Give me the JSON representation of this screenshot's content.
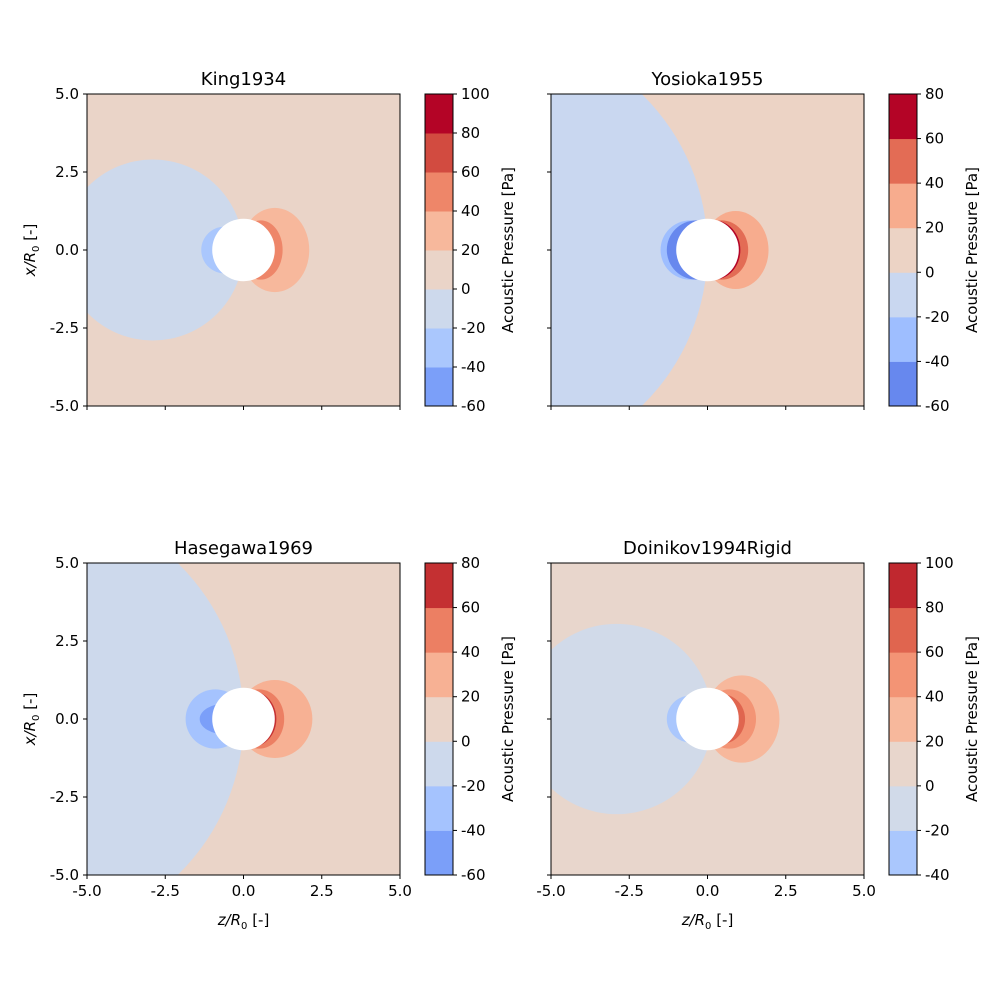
{
  "chart_data": [
    {
      "type": "heatmap",
      "title": "King1934",
      "xlabel": "",
      "ylabel": "x/R0 [-]",
      "xlim": [
        -5,
        5
      ],
      "ylim": [
        -5,
        5
      ],
      "xticks": [
        "",
        "",
        "",
        "",
        ""
      ],
      "yticks": [
        "5.0",
        "2.5",
        "0.0",
        "-2.5",
        "-5.0"
      ],
      "colorbar": {
        "label": "Acoustic Pressure [Pa]",
        "levels": [
          -60,
          -40,
          -20,
          0,
          20,
          40,
          60,
          80,
          100
        ],
        "colors": [
          "#7b9ff9",
          "#aac7fd",
          "#cdd9ec",
          "#ead4c8",
          "#f7b89c",
          "#ee8669",
          "#d24b40",
          "#b40426"
        ],
        "ticklabels": [
          "-60",
          "-40",
          "-20",
          "0",
          "20",
          "40",
          "60",
          "80",
          "100"
        ]
      },
      "regions": [
        {
          "shape": "circle",
          "cz": -2.9,
          "cx": 0.0,
          "r": 2.9,
          "level": "-20 to 0"
        },
        {
          "shape": "ellipse",
          "cz": 1.0,
          "cx": 0.0,
          "rz": 1.1,
          "rx": 1.35,
          "level": "20 to 40"
        },
        {
          "shape": "circle",
          "cz": -0.6,
          "cx": 0.0,
          "r": 0.75,
          "level": "-40 to -20"
        },
        {
          "shape": "ellipse",
          "cz": 0.55,
          "cx": 0.0,
          "rz": 0.7,
          "rx": 0.95,
          "level": "40 to 60"
        },
        {
          "shape": "ellipse",
          "cz": 0.3,
          "cx": 0.0,
          "rz": 0.65,
          "rx": 0.75,
          "level": "60 to 80"
        }
      ],
      "background_level": "0 to 20",
      "hole_radius": 1.0
    },
    {
      "type": "heatmap",
      "title": "Yosioka1955",
      "xlabel": "",
      "ylabel": "",
      "xlim": [
        -5,
        5
      ],
      "ylim": [
        -5,
        5
      ],
      "xticks": [
        "",
        "",
        "",
        "",
        ""
      ],
      "yticks": [
        "",
        "",
        "",
        "",
        ""
      ],
      "colorbar": {
        "label": "Acoustic Pressure [Pa]",
        "levels": [
          -60,
          -40,
          -20,
          0,
          20,
          40,
          60,
          80
        ],
        "colors": [
          "#6788ee",
          "#9ebeff",
          "#c9d7f0",
          "#ecd3c5",
          "#f7ac8e",
          "#e36c55",
          "#b40426"
        ],
        "ticklabels": [
          "-60",
          "-40",
          "-20",
          "0",
          "20",
          "40",
          "60",
          "80"
        ]
      },
      "regions": [
        {
          "shape": "circle",
          "cz": -7.0,
          "cx": 0.0,
          "r": 7.0,
          "level": "-20 to 0"
        },
        {
          "shape": "ellipse",
          "cz": 0.9,
          "cx": 0.0,
          "rz": 1.05,
          "rx": 1.25,
          "level": "20 to 40"
        },
        {
          "shape": "circle",
          "cz": -0.55,
          "cx": 0.0,
          "r": 0.95,
          "level": "-40 to -20"
        },
        {
          "shape": "circle",
          "cz": -0.35,
          "cx": 0.0,
          "r": 0.95,
          "level": "-60 to -40"
        },
        {
          "shape": "ellipse",
          "cz": 0.45,
          "cx": 0.0,
          "rz": 0.85,
          "rx": 0.95,
          "level": "40 to 60"
        },
        {
          "shape": "ellipse",
          "cz": 0.2,
          "cx": 0.0,
          "rz": 0.85,
          "rx": 0.95,
          "level": "60 to 80"
        }
      ],
      "background_level": "0 to 20",
      "hole_radius": 1.0
    },
    {
      "type": "heatmap",
      "title": "Hasegawa1969",
      "xlabel": "z/R0 [-]",
      "ylabel": "x/R0 [-]",
      "xlim": [
        -5,
        5
      ],
      "ylim": [
        -5,
        5
      ],
      "xticks": [
        "-5.0",
        "-2.5",
        "0.0",
        "2.5",
        "5.0"
      ],
      "yticks": [
        "5.0",
        "2.5",
        "0.0",
        "-2.5",
        "-5.0"
      ],
      "colorbar": {
        "label": "Acoustic Pressure [Pa]",
        "levels": [
          -60,
          -40,
          -20,
          0,
          20,
          40,
          60,
          80
        ],
        "colors": [
          "#7b9ff9",
          "#a5c3fe",
          "#cdd9ec",
          "#ead4c8",
          "#f7b194",
          "#ec7f63",
          "#c43032"
        ],
        "ticklabels": [
          "-60",
          "-40",
          "-20",
          "0",
          "20",
          "40",
          "60",
          "80"
        ]
      },
      "regions": [
        {
          "shape": "circle",
          "cz": -7.0,
          "cx": 0.0,
          "r": 7.0,
          "level": "-20 to 0"
        },
        {
          "shape": "ellipse",
          "cz": 1.0,
          "cx": 0.0,
          "rz": 1.2,
          "rx": 1.25,
          "level": "20 to 40"
        },
        {
          "shape": "circle",
          "cz": -0.9,
          "cx": 0.0,
          "r": 0.95,
          "level": "-40 to -20"
        },
        {
          "shape": "ellipse",
          "cz": -0.55,
          "cx": 0.0,
          "rz": 0.85,
          "rx": 0.5,
          "level": "-60 to -40"
        },
        {
          "shape": "ellipse",
          "cz": 0.5,
          "cx": 0.0,
          "rz": 0.8,
          "rx": 0.95,
          "level": "40 to 60"
        },
        {
          "shape": "ellipse",
          "cz": 0.25,
          "cx": 0.0,
          "rz": 0.8,
          "rx": 0.9,
          "level": "60 to 80"
        }
      ],
      "background_level": "0 to 20",
      "hole_radius": 1.0
    },
    {
      "type": "heatmap",
      "title": "Doinikov1994Rigid",
      "xlabel": "z/R0 [-]",
      "ylabel": "",
      "xlim": [
        -5,
        5
      ],
      "ylim": [
        -5,
        5
      ],
      "xticks": [
        "-5.0",
        "-2.5",
        "0.0",
        "2.5",
        "5.0"
      ],
      "yticks": [
        "",
        "",
        "",
        "",
        ""
      ],
      "colorbar": {
        "label": "Acoustic Pressure [Pa]",
        "levels": [
          -40,
          -20,
          0,
          20,
          40,
          60,
          80,
          100
        ],
        "colors": [
          "#aac7fd",
          "#d1dae9",
          "#e8d6cc",
          "#f7b89c",
          "#f39475",
          "#e0654f",
          "#c0282f"
        ],
        "ticklabels": [
          "-40",
          "-20",
          "0",
          "20",
          "40",
          "60",
          "80",
          "100"
        ]
      },
      "regions": [
        {
          "shape": "circle",
          "cz": -2.9,
          "cx": 0.0,
          "r": 3.05,
          "level": "-20 to 0"
        },
        {
          "shape": "ellipse",
          "cz": 1.1,
          "cx": 0.0,
          "rz": 1.2,
          "rx": 1.4,
          "level": "20 to 40"
        },
        {
          "shape": "circle",
          "cz": -0.55,
          "cx": 0.0,
          "r": 0.75,
          "level": "-40 to -20"
        },
        {
          "shape": "ellipse",
          "cz": 0.7,
          "cx": 0.0,
          "rz": 0.85,
          "rx": 0.95,
          "level": "40 to 60"
        },
        {
          "shape": "ellipse",
          "cz": 0.45,
          "cx": 0.0,
          "rz": 0.75,
          "rx": 0.8,
          "level": "60 to 80"
        },
        {
          "shape": "ellipse",
          "cz": 0.2,
          "cx": 0.0,
          "rz": 0.8,
          "rx": 0.85,
          "level": "80 to 100"
        }
      ],
      "background_level": "0 to 20",
      "hole_radius": 1.0
    }
  ]
}
